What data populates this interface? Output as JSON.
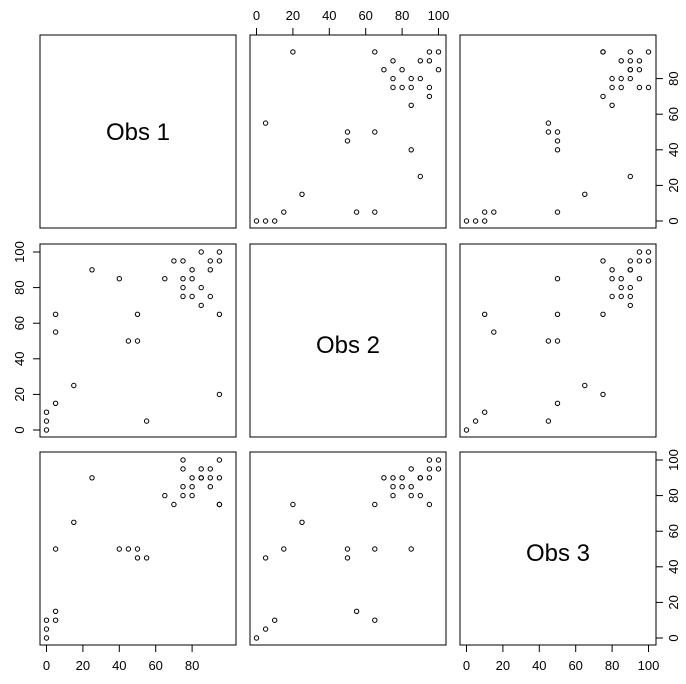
{
  "chart_data": {
    "type": "scatter",
    "variables": [
      "Obs 1",
      "Obs 2",
      "Obs 3"
    ],
    "axis_range": [
      0,
      100
    ],
    "ticks": [
      "0",
      "20",
      "40",
      "60",
      "80",
      "100"
    ],
    "grid": false,
    "observations": [
      {
        "obs1": 0,
        "obs2": 0,
        "obs3": 0
      },
      {
        "obs1": 0,
        "obs2": 5,
        "obs3": 5
      },
      {
        "obs1": 0,
        "obs2": 10,
        "obs3": 10
      },
      {
        "obs1": 5,
        "obs2": 15,
        "obs3": 50
      },
      {
        "obs1": 45,
        "obs2": 50,
        "obs3": 50
      },
      {
        "obs1": 50,
        "obs2": 50,
        "obs3": 45
      },
      {
        "obs1": 50,
        "obs2": 65,
        "obs3": 50
      },
      {
        "obs1": 15,
        "obs2": 25,
        "obs3": 65
      },
      {
        "obs1": 95,
        "obs2": 20,
        "obs3": 75
      },
      {
        "obs1": 80,
        "obs2": 75,
        "obs3": 90
      },
      {
        "obs1": 75,
        "obs2": 85,
        "obs3": 95
      },
      {
        "obs1": 90,
        "obs2": 90,
        "obs3": 90
      },
      {
        "obs1": 95,
        "obs2": 95,
        "obs3": 90
      },
      {
        "obs1": 95,
        "obs2": 100,
        "obs3": 100
      },
      {
        "obs1": 90,
        "obs2": 95,
        "obs3": 95
      },
      {
        "obs1": 80,
        "obs2": 85,
        "obs3": 85
      },
      {
        "obs1": 85,
        "obs2": 80,
        "obs3": 90
      },
      {
        "obs1": 75,
        "obs2": 75,
        "obs3": 80
      },
      {
        "obs1": 95,
        "obs2": 65,
        "obs3": 75
      },
      {
        "obs1": 90,
        "obs2": 75,
        "obs3": 85
      },
      {
        "obs1": 85,
        "obs2": 70,
        "obs3": 90
      },
      {
        "obs1": 70,
        "obs2": 95,
        "obs3": 75
      },
      {
        "obs1": 80,
        "obs2": 90,
        "obs3": 80
      },
      {
        "obs1": 75,
        "obs2": 80,
        "obs3": 85
      },
      {
        "obs1": 25,
        "obs2": 90,
        "obs3": 90
      },
      {
        "obs1": 65,
        "obs2": 85,
        "obs3": 80
      },
      {
        "obs1": 5,
        "obs2": 55,
        "obs3": 15
      },
      {
        "obs1": 5,
        "obs2": 65,
        "obs3": 10
      },
      {
        "obs1": 40,
        "obs2": 85,
        "obs3": 50
      },
      {
        "obs1": 85,
        "obs2": 100,
        "obs3": 95
      },
      {
        "obs1": 55,
        "obs2": 5,
        "obs3": 45
      },
      {
        "obs1": 75,
        "obs2": 95,
        "obs3": 100
      }
    ]
  }
}
